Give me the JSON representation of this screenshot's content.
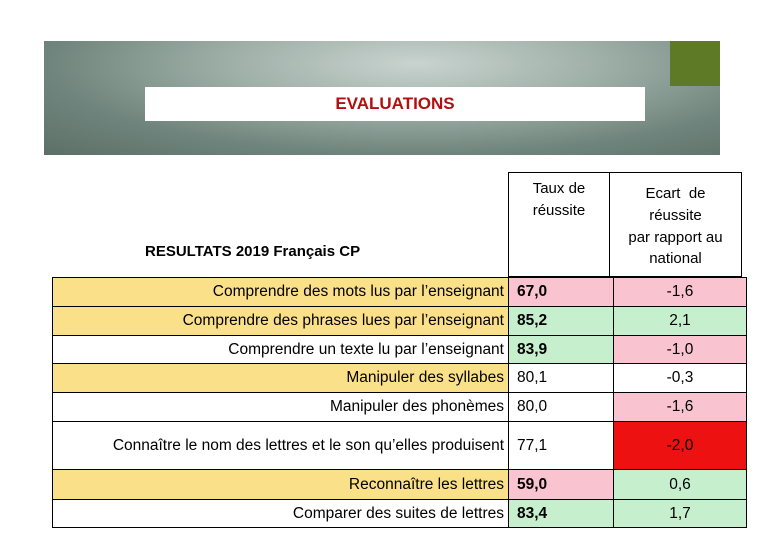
{
  "header": {
    "title": "EVALUATIONS",
    "subtitle": "RESULTATS 2019 Français CP",
    "col_taux_l1": "Taux de",
    "col_taux_l2": "réussite",
    "col_ecart_l1": "Ecart  de",
    "col_ecart_l2": "réussite",
    "col_ecart_l3": "par rapport au",
    "col_ecart_l4": "national"
  },
  "rows": [
    {
      "label": "Comprendre des mots lus par l’enseignant",
      "taux": "67,0",
      "ecart": "-1,6",
      "label_bg": "#fbe08a",
      "taux_bg": "#f9c4cf",
      "ecart_bg": "#f9c4cf",
      "taux_bold": true
    },
    {
      "label": "Comprendre des phrases lues par l’enseignant",
      "taux": "85,2",
      "ecart": "2,1",
      "label_bg": "#fbe08a",
      "taux_bg": "#c6efce",
      "ecart_bg": "#c6efce",
      "taux_bold": true
    },
    {
      "label": "Comprendre un texte lu par l’enseignant",
      "taux": "83,9",
      "ecart": "-1,0",
      "label_bg": "#ffffff",
      "taux_bg": "#c6efce",
      "ecart_bg": "#f9c4cf",
      "taux_bold": true
    },
    {
      "label": "Manipuler des syllabes",
      "taux": "80,1",
      "ecart": "-0,3",
      "label_bg": "#fbe08a",
      "taux_bg": "#ffffff",
      "ecart_bg": "#ffffff",
      "taux_bold": false
    },
    {
      "label": "Manipuler des phonèmes",
      "taux": "80,0",
      "ecart": "-1,6",
      "label_bg": "#ffffff",
      "taux_bg": "#ffffff",
      "ecart_bg": "#f9c4cf",
      "taux_bold": false
    },
    {
      "label": "Connaître le nom des lettres et le son qu’elles produisent",
      "taux": "77,1",
      "ecart": "-2,0",
      "label_bg": "#ffffff",
      "taux_bg": "#ffffff",
      "ecart_bg": "#ee1111",
      "taux_bold": false
    },
    {
      "label": "Reconnaître les lettres",
      "taux": "59,0",
      "ecart": "0,6",
      "label_bg": "#fbe08a",
      "taux_bg": "#f9c4cf",
      "ecart_bg": "#c6efce",
      "taux_bold": true
    },
    {
      "label": "Comparer des suites de lettres",
      "taux": "83,4",
      "ecart": "1,7",
      "label_bg": "#ffffff",
      "taux_bg": "#c6efce",
      "ecart_bg": "#c6efce",
      "taux_bold": true
    }
  ]
}
